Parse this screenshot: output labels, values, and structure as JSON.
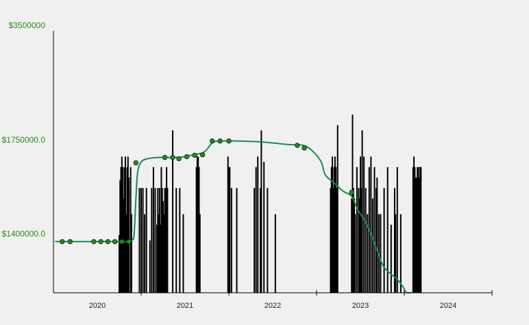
{
  "chart_data": {
    "type": "bar",
    "title": "",
    "xlabel": "",
    "ylabel": "",
    "colors": {
      "background": "#f0f0f0",
      "bars": "#000000",
      "line": "#1a8a50",
      "markers": "#2a8a1e",
      "marker_stroke": "#0e3d0e",
      "tick_labels_y": "#2a8a1e",
      "axis": "#000000"
    },
    "x_axis": {
      "min": 2019.5,
      "max": 2024.5,
      "ticks": [
        2020,
        2021,
        2022,
        2023,
        2024
      ],
      "tick_labels": [
        "2020",
        "2021",
        "2022",
        "2023",
        "2024"
      ],
      "separators": [
        2020.5,
        2021.5,
        2022.5,
        2023.5,
        2024.5
      ]
    },
    "y_axis": {
      "min": 1240000,
      "max": 3500000,
      "tick_values": [
        1400000,
        1750000,
        3500000
      ],
      "tick_labels": [
        "$1400000.0",
        "$1750000.0",
        "$3500000"
      ]
    },
    "bar_series": {
      "name": "volume",
      "bars": [
        [
          2020.25,
          0.22
        ],
        [
          2020.26,
          0.43
        ],
        [
          2020.27,
          0.48
        ],
        [
          2020.28,
          0.52
        ],
        [
          2020.29,
          0.48
        ],
        [
          2020.3,
          0.36
        ],
        [
          2020.31,
          0.48
        ],
        [
          2020.32,
          0.52
        ],
        [
          2020.33,
          0.3
        ],
        [
          2020.34,
          0.48
        ],
        [
          2020.35,
          0.52
        ],
        [
          2020.36,
          0.44
        ],
        [
          2020.38,
          0.48
        ],
        [
          2020.39,
          0.3
        ],
        [
          2020.48,
          0.4
        ],
        [
          2020.5,
          0.4
        ],
        [
          2020.52,
          0.4
        ],
        [
          2020.54,
          0.3
        ],
        [
          2020.56,
          0.4
        ],
        [
          2020.6,
          0.2
        ],
        [
          2020.62,
          0.4
        ],
        [
          2020.64,
          0.48
        ],
        [
          2020.66,
          0.4
        ],
        [
          2020.68,
          0.26
        ],
        [
          2020.69,
          0.4
        ],
        [
          2020.7,
          0.3
        ],
        [
          2020.71,
          0.4
        ],
        [
          2020.72,
          0.26
        ],
        [
          2020.73,
          0.48
        ],
        [
          2020.74,
          0.4
        ],
        [
          2020.75,
          0.35
        ],
        [
          2020.76,
          0.3
        ],
        [
          2020.77,
          0.4
        ],
        [
          2020.78,
          0.4
        ],
        [
          2020.79,
          0.48
        ],
        [
          2020.8,
          0.4
        ],
        [
          2020.86,
          0.62
        ],
        [
          2020.9,
          0.4
        ],
        [
          2020.94,
          0.4
        ],
        [
          2020.98,
          0.3
        ],
        [
          2021.13,
          0.48
        ],
        [
          2021.14,
          0.52
        ],
        [
          2021.15,
          0.52
        ],
        [
          2021.16,
          0.48
        ],
        [
          2021.17,
          0.3
        ],
        [
          2021.49,
          0.52
        ],
        [
          2021.5,
          0.48
        ],
        [
          2021.51,
          0.48
        ],
        [
          2021.53,
          0.4
        ],
        [
          2021.59,
          0.4
        ],
        [
          2021.79,
          0.4
        ],
        [
          2021.81,
          0.48
        ],
        [
          2021.83,
          0.52
        ],
        [
          2021.86,
          0.4
        ],
        [
          2021.87,
          0.62
        ],
        [
          2021.9,
          0.5
        ],
        [
          2021.94,
          0.4
        ],
        [
          2022.03,
          0.3
        ],
        [
          2022.66,
          0.4
        ],
        [
          2022.67,
          0.48
        ],
        [
          2022.68,
          0.52
        ],
        [
          2022.69,
          0.4
        ],
        [
          2022.7,
          0.48
        ],
        [
          2022.71,
          0.52
        ],
        [
          2022.72,
          0.48
        ],
        [
          2022.73,
          0.4
        ],
        [
          2022.74,
          0.64
        ],
        [
          2022.9,
          0.36
        ],
        [
          2022.91,
          0.68
        ],
        [
          2022.92,
          0.4
        ],
        [
          2022.93,
          0.36
        ],
        [
          2022.94,
          0.3
        ],
        [
          2022.96,
          0.48
        ],
        [
          2022.98,
          0.4
        ],
        [
          2022.99,
          0.36
        ],
        [
          2023.0,
          0.52
        ],
        [
          2023.01,
          0.4
        ],
        [
          2023.02,
          0.62
        ],
        [
          2023.04,
          0.52
        ],
        [
          2023.06,
          0.4
        ],
        [
          2023.08,
          0.3
        ],
        [
          2023.1,
          0.48
        ],
        [
          2023.12,
          0.52
        ],
        [
          2023.14,
          0.36
        ],
        [
          2023.16,
          0.48
        ],
        [
          2023.18,
          0.4
        ],
        [
          2023.19,
          0.44
        ],
        [
          2023.21,
          0.3
        ],
        [
          2023.23,
          0.3
        ],
        [
          2023.27,
          0.4
        ],
        [
          2023.31,
          0.48
        ],
        [
          2023.35,
          0.26
        ],
        [
          2023.39,
          0.4
        ],
        [
          2023.4,
          0.3
        ],
        [
          2023.42,
          0.48
        ],
        [
          2023.46,
          0.3
        ],
        [
          2023.6,
          0.48
        ],
        [
          2023.61,
          0.52
        ],
        [
          2023.62,
          0.48
        ],
        [
          2023.63,
          0.44
        ],
        [
          2023.64,
          0.44
        ],
        [
          2023.65,
          0.48
        ],
        [
          2023.66,
          0.48
        ],
        [
          2023.67,
          0.44
        ],
        [
          2023.68,
          0.48
        ],
        [
          2023.69,
          0.48
        ]
      ]
    },
    "line_series": {
      "name": "price",
      "points": [
        [
          2019.52,
          1393000
        ],
        [
          2019.7,
          1393000
        ],
        [
          2019.9,
          1393000
        ],
        [
          2020.1,
          1393000
        ],
        [
          2020.25,
          1393000
        ],
        [
          2020.35,
          1393000
        ],
        [
          2020.4,
          1398000
        ],
        [
          2020.42,
          1420000
        ],
        [
          2020.44,
          1550000
        ],
        [
          2020.46,
          1650000
        ],
        [
          2020.5,
          1688000
        ],
        [
          2020.57,
          1700000
        ],
        [
          2020.7,
          1705000
        ],
        [
          2020.9,
          1705000
        ],
        [
          2021.0,
          1708000
        ],
        [
          2021.1,
          1715000
        ],
        [
          2021.2,
          1722000
        ],
        [
          2021.25,
          1735000
        ],
        [
          2021.3,
          1775000
        ],
        [
          2021.35,
          1810000
        ],
        [
          2021.45,
          1817000
        ],
        [
          2021.6,
          1817000
        ],
        [
          2021.75,
          1810000
        ],
        [
          2021.9,
          1800000
        ],
        [
          2022.05,
          1780000
        ],
        [
          2022.2,
          1760000
        ],
        [
          2022.35,
          1750000
        ],
        [
          2022.45,
          1730000
        ],
        [
          2022.55,
          1690000
        ],
        [
          2022.6,
          1640000
        ],
        [
          2022.7,
          1610000
        ],
        [
          2022.8,
          1580000
        ],
        [
          2022.9,
          1560000
        ],
        [
          2022.97,
          1510000
        ],
        [
          2023.05,
          1470000
        ],
        [
          2023.12,
          1420000
        ],
        [
          2023.2,
          1360000
        ],
        [
          2023.26,
          1320000
        ],
        [
          2023.33,
          1300000
        ],
        [
          2023.42,
          1280000
        ],
        [
          2023.48,
          1260000
        ],
        [
          2023.52,
          1242000
        ],
        [
          2023.58,
          1240000
        ]
      ]
    },
    "marker_series": {
      "name": "events",
      "points": [
        [
          2019.6,
          1393000
        ],
        [
          2019.69,
          1393000
        ],
        [
          2019.96,
          1393000
        ],
        [
          2020.04,
          1393000
        ],
        [
          2020.12,
          1393000
        ],
        [
          2020.2,
          1393000
        ],
        [
          2020.28,
          1393000
        ],
        [
          2020.36,
          1393000
        ],
        [
          2020.44,
          1685000
        ],
        [
          2020.77,
          1705000
        ],
        [
          2020.86,
          1705000
        ],
        [
          2020.93,
          1700000
        ],
        [
          2021.02,
          1708000
        ],
        [
          2021.11,
          1713000
        ],
        [
          2021.2,
          1715000
        ],
        [
          2021.31,
          1817000
        ],
        [
          2021.4,
          1817000
        ],
        [
          2021.5,
          1817000
        ],
        [
          2022.28,
          1750000
        ],
        [
          2022.36,
          1740000
        ],
        [
          2022.9,
          1575000
        ]
      ]
    }
  }
}
